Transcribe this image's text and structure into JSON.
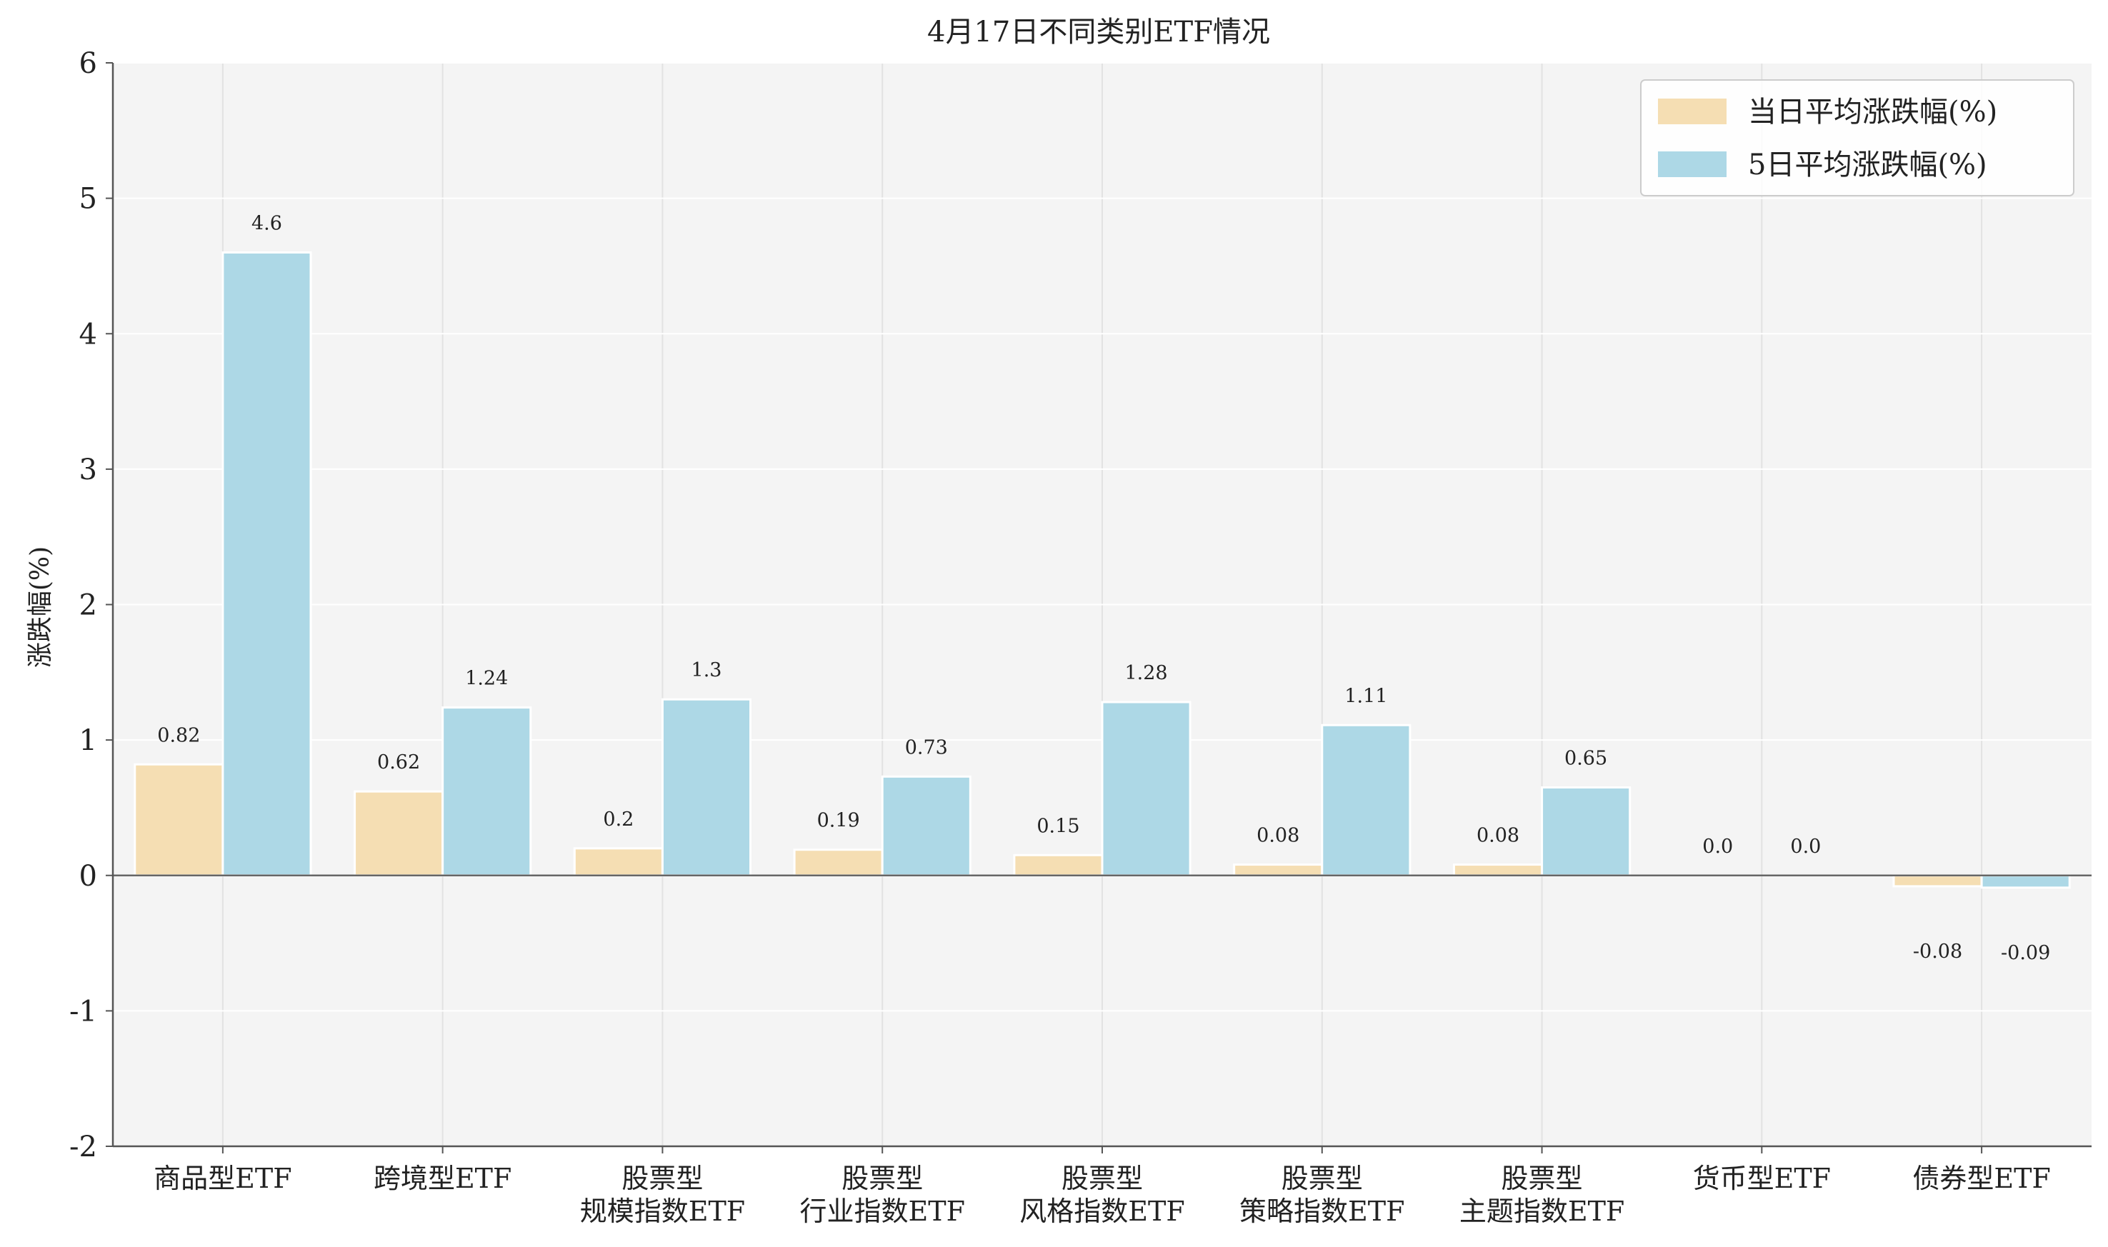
{
  "chart_data": {
    "type": "bar",
    "title": "4月17日不同类别ETF情况",
    "xlabel": "",
    "ylabel": "涨跌幅(%)",
    "ylim": [
      -2,
      6
    ],
    "yticks": [
      "-2",
      "-1",
      "0",
      "1",
      "2",
      "3",
      "4",
      "5",
      "6"
    ],
    "categories": [
      [
        "商品型ETF"
      ],
      [
        "跨境型ETF"
      ],
      [
        "股票型",
        "规模指数ETF"
      ],
      [
        "股票型",
        "行业指数ETF"
      ],
      [
        "股票型",
        "风格指数ETF"
      ],
      [
        "股票型",
        "策略指数ETF"
      ],
      [
        "股票型",
        "主题指数ETF"
      ],
      [
        "货币型ETF"
      ],
      [
        "债券型ETF"
      ]
    ],
    "series": [
      {
        "name": "当日平均涨跌幅(%)",
        "color": "#f5deb3",
        "values": [
          0.82,
          0.62,
          0.2,
          0.19,
          0.15,
          0.08,
          0.08,
          0.0,
          -0.08
        ],
        "labels": [
          "0.82",
          "0.62",
          "0.2",
          "0.19",
          "0.15",
          "0.08",
          "0.08",
          "0.0",
          "-0.08"
        ]
      },
      {
        "name": "5日平均涨跌幅(%)",
        "color": "#add8e6",
        "values": [
          4.6,
          1.24,
          1.3,
          0.73,
          1.28,
          1.11,
          0.65,
          0.0,
          -0.09
        ],
        "labels": [
          "4.6",
          "1.24",
          "1.3",
          "0.73",
          "1.28",
          "1.11",
          "0.65",
          "0.0",
          "-0.09"
        ]
      }
    ],
    "grid": true,
    "legend_position": "top-right",
    "background_color": "#f4f4f4"
  }
}
